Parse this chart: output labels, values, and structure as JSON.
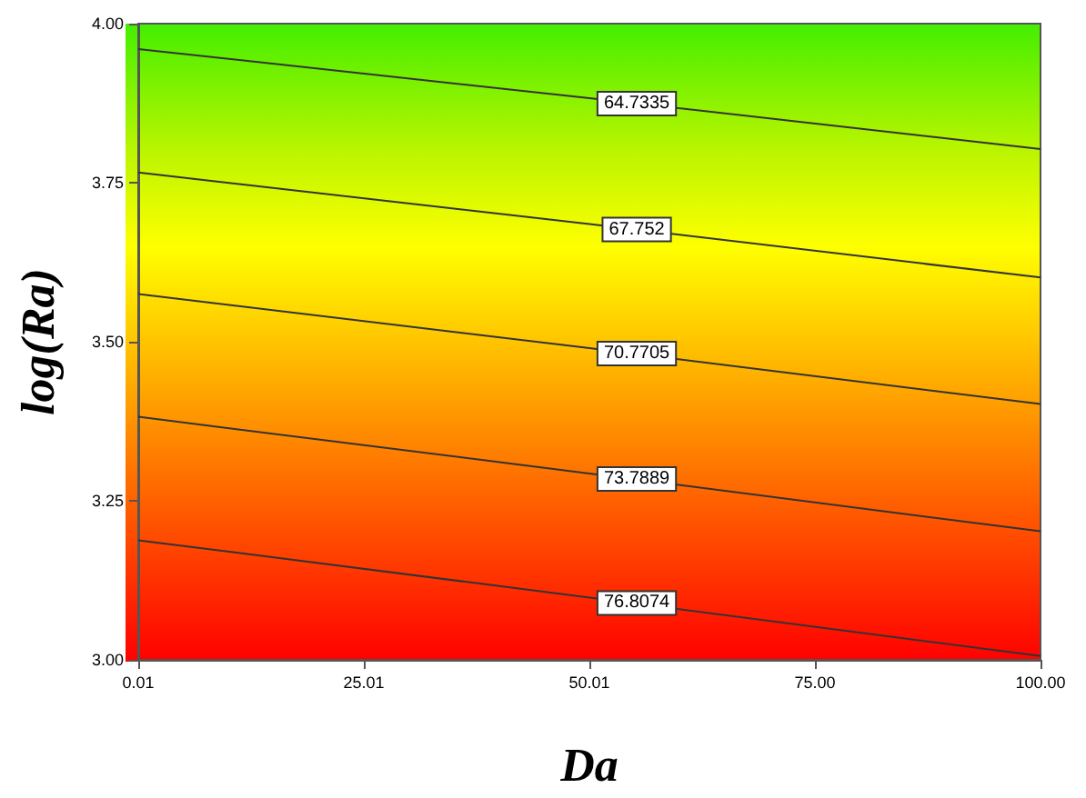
{
  "chart_data": {
    "type": "line",
    "xlabel": "Da",
    "ylabel": "log(Ra)",
    "x": [
      0.01,
      50.01,
      100
    ],
    "series": [
      {
        "name": "64.7335",
        "color": "#333333",
        "values": [
          3.96,
          3.883,
          3.803
        ]
      },
      {
        "name": "67.752",
        "color": "#333333",
        "values": [
          3.766,
          3.685,
          3.601
        ]
      },
      {
        "name": "70.7705",
        "color": "#333333",
        "values": [
          3.575,
          3.49,
          3.402
        ]
      },
      {
        "name": "73.7889",
        "color": "#333333",
        "values": [
          3.382,
          3.293,
          3.202
        ]
      },
      {
        "name": "76.8074",
        "color": "#333333",
        "values": [
          3.188,
          3.098,
          3.006
        ]
      }
    ],
    "xlim": [
      0.01,
      100
    ],
    "xticks": [
      {
        "value": 0.01,
        "label": "0.01"
      },
      {
        "value": 25.01,
        "label": "25.01"
      },
      {
        "value": 50.01,
        "label": "50.01"
      },
      {
        "value": 75,
        "label": "75.00"
      },
      {
        "value": 100,
        "label": "100.00"
      }
    ],
    "ylim": [
      3,
      4
    ],
    "yticks": [
      {
        "value": 3,
        "label": "3.00"
      },
      {
        "value": 3.25,
        "label": "3.25"
      },
      {
        "value": 3.5,
        "label": "3.50"
      },
      {
        "value": 3.75,
        "label": "3.75"
      },
      {
        "value": 4,
        "label": "4.00"
      }
    ],
    "legend": false
  }
}
